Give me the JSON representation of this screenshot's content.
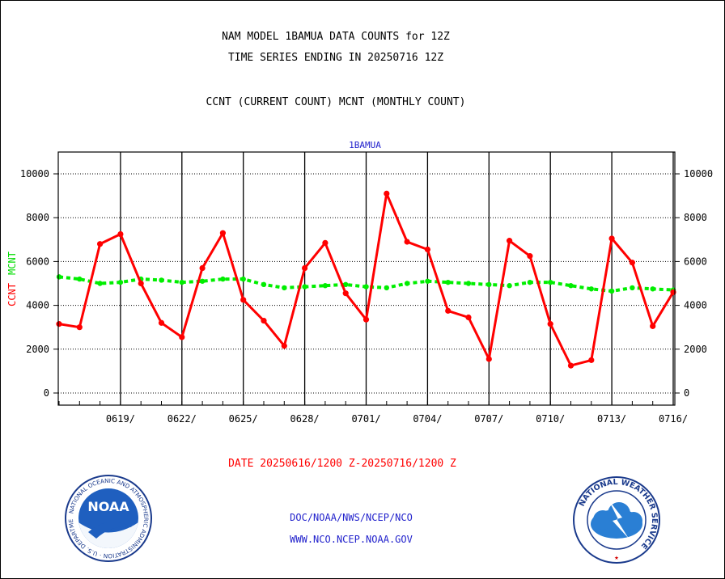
{
  "header": {
    "line1": "NAM MODEL 1BAMUA DATA COUNTS for 12Z",
    "line2": "TIME SERIES ENDING IN 20250716 12Z",
    "line3": "CCNT (CURRENT COUNT) MCNT (MONTHLY COUNT)"
  },
  "footer": {
    "date_range": "DATE 20250616/1200 Z-20250716/1200 Z",
    "agency": "DOC/NOAA/NWS/NCEP/NCO",
    "website": "WWW.NCO.NCEP.NOAA.GOV"
  },
  "logos": {
    "left_text": "NOAA",
    "left_ring": "NATIONAL OCEANIC AND ATMOSPHERIC ADMINISTRATION · U.S. DEPARTMENT OF COMMERCE",
    "right_ring": "NATIONAL WEATHER SERVICE"
  },
  "colors": {
    "ccnt": "#ff0000",
    "mcnt": "#00ee00",
    "subtitle": "#2222cc",
    "grid": "#000000"
  },
  "chart_data": {
    "type": "line",
    "title": "1BAMUA",
    "ylabel_left": "CCNT",
    "ylabel_right": "MCNT",
    "ylim": [
      -600,
      11000
    ],
    "yticks": [
      0,
      2000,
      4000,
      6000,
      8000,
      10000
    ],
    "ytick_labels": [
      "0",
      "2000",
      "4000",
      "6000",
      "8000",
      "10000"
    ],
    "xlim_days": [
      0,
      30.5
    ],
    "xtick_labels": [
      "0619/",
      "0622/",
      "0625/",
      "0628/",
      "0701/",
      "0704/",
      "0707/",
      "0710/",
      "0713/",
      "0716/"
    ],
    "xtick_days": [
      3,
      6,
      9,
      12,
      15,
      18,
      21,
      24,
      27,
      30
    ],
    "grid": true,
    "series": [
      {
        "name": "CCNT",
        "color": "#ff0000",
        "x_days": [
          0,
          1,
          2,
          3,
          4,
          5,
          6,
          7,
          8,
          9,
          10,
          11,
          12,
          13,
          14,
          15,
          16,
          17,
          18,
          19,
          20,
          21,
          22,
          23,
          24,
          25,
          26,
          27,
          28,
          29,
          30
        ],
        "values": [
          3150,
          3000,
          6800,
          7250,
          5000,
          3200,
          2550,
          5700,
          7300,
          4250,
          3300,
          2150,
          5700,
          6850,
          4550,
          3350,
          9100,
          6900,
          6550,
          3750,
          3450,
          1550,
          6950,
          6250,
          3150,
          1250,
          1500,
          7050,
          5950,
          3050,
          4600
        ]
      },
      {
        "name": "MCNT",
        "color": "#00ee00",
        "x_days": [
          0,
          1,
          2,
          3,
          4,
          5,
          6,
          7,
          8,
          9,
          10,
          11,
          12,
          13,
          14,
          15,
          16,
          17,
          18,
          19,
          20,
          21,
          22,
          23,
          24,
          25,
          26,
          27,
          28,
          29,
          30
        ],
        "values": [
          5300,
          5200,
          5000,
          5050,
          5200,
          5150,
          5050,
          5100,
          5200,
          5200,
          4950,
          4800,
          4850,
          4900,
          4950,
          4850,
          4800,
          5000,
          5100,
          5050,
          5000,
          4950,
          4900,
          5050,
          5050,
          4900,
          4750,
          4650,
          4800,
          4750,
          4700
        ]
      }
    ]
  }
}
